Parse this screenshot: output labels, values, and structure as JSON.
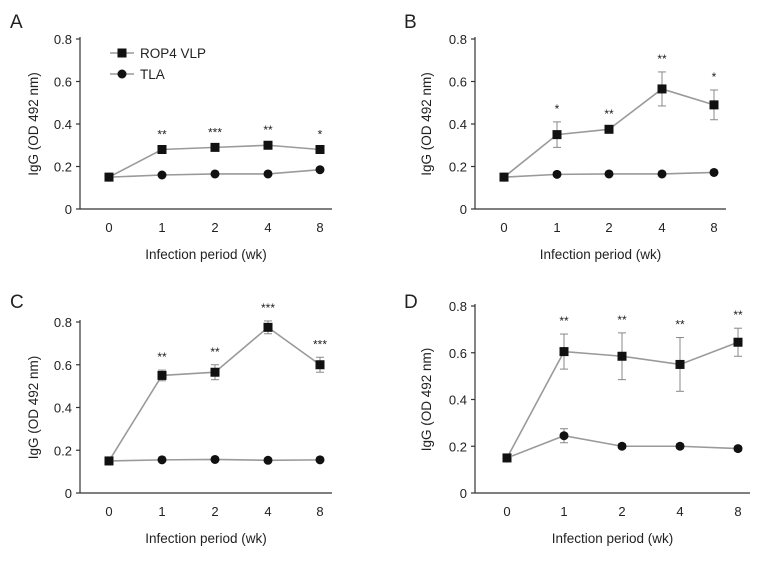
{
  "chart_data": [
    {
      "panel_label": "A",
      "type": "line",
      "categories": [
        "0",
        "1",
        "2",
        "4",
        "8"
      ],
      "xlabel": "Infection period (wk)",
      "ylabel": "IgG (OD 492 nm)",
      "ylim": [
        0,
        0.8
      ],
      "yticks": [
        "0",
        "0.2",
        "0.4",
        "0.6",
        "0.8"
      ],
      "legend": true,
      "series": [
        {
          "name": "ROP4 VLP",
          "marker": "square",
          "values": [
            0.15,
            0.28,
            0.29,
            0.3,
            0.28
          ],
          "errors": [
            0,
            0.01,
            0.01,
            0.01,
            0.01
          ]
        },
        {
          "name": "TLA",
          "marker": "circle",
          "values": [
            0.15,
            0.16,
            0.165,
            0.165,
            0.185
          ],
          "errors": [
            0,
            0,
            0,
            0,
            0
          ]
        }
      ],
      "significance": [
        "",
        "**",
        "***",
        "**",
        "*"
      ]
    },
    {
      "panel_label": "B",
      "type": "line",
      "categories": [
        "0",
        "1",
        "2",
        "4",
        "8"
      ],
      "xlabel": "Infection period (wk)",
      "ylabel": "IgG (OD 492 nm)",
      "ylim": [
        0,
        0.8
      ],
      "yticks": [
        "0",
        "0.2",
        "0.4",
        "0.6",
        "0.8"
      ],
      "legend": false,
      "series": [
        {
          "name": "ROP4 VLP",
          "marker": "square",
          "values": [
            0.15,
            0.35,
            0.375,
            0.565,
            0.49
          ],
          "errors": [
            0,
            0.06,
            0.01,
            0.08,
            0.07
          ]
        },
        {
          "name": "TLA",
          "marker": "circle",
          "values": [
            0.15,
            0.163,
            0.165,
            0.165,
            0.172
          ],
          "errors": [
            0,
            0,
            0,
            0,
            0
          ]
        }
      ],
      "significance": [
        "",
        "*",
        "**",
        "**",
        "*"
      ]
    },
    {
      "panel_label": "C",
      "type": "line",
      "categories": [
        "0",
        "1",
        "2",
        "4",
        "8"
      ],
      "xlabel": "Infection period (wk)",
      "ylabel": "IgG (OD 492 nm)",
      "ylim": [
        0,
        0.8
      ],
      "yticks": [
        "0",
        "0.2",
        "0.4",
        "0.6",
        "0.8"
      ],
      "legend": false,
      "series": [
        {
          "name": "ROP4 VLP",
          "marker": "square",
          "values": [
            0.15,
            0.55,
            0.565,
            0.775,
            0.6
          ],
          "errors": [
            0,
            0.025,
            0.035,
            0.03,
            0.035
          ]
        },
        {
          "name": "TLA",
          "marker": "circle",
          "values": [
            0.15,
            0.155,
            0.157,
            0.153,
            0.155
          ],
          "errors": [
            0,
            0,
            0,
            0,
            0
          ]
        }
      ],
      "significance": [
        "",
        "**",
        "**",
        "***",
        "***"
      ]
    },
    {
      "panel_label": "D",
      "type": "line",
      "categories": [
        "0",
        "1",
        "2",
        "4",
        "8"
      ],
      "xlabel": "Infection period (wk)",
      "ylabel": "IgG (OD 492 nm)",
      "ylim": [
        0,
        0.8
      ],
      "yticks": [
        "0",
        "0.2",
        "0.4",
        "0.6",
        "0.8"
      ],
      "legend": false,
      "series": [
        {
          "name": "ROP4 VLP",
          "marker": "square",
          "values": [
            0.15,
            0.605,
            0.585,
            0.55,
            0.645
          ],
          "errors": [
            0,
            0.075,
            0.1,
            0.115,
            0.06
          ]
        },
        {
          "name": "TLA",
          "marker": "circle",
          "values": [
            0.15,
            0.245,
            0.2,
            0.2,
            0.19
          ],
          "errors": [
            0,
            0.03,
            0.01,
            0.01,
            0.01
          ]
        }
      ],
      "significance": [
        "",
        "**",
        "**",
        "**",
        "**"
      ]
    }
  ],
  "colors": {
    "line": "#9a9a9a",
    "marker": "#111111",
    "axis": "#333333",
    "error_bar": "#888888"
  }
}
